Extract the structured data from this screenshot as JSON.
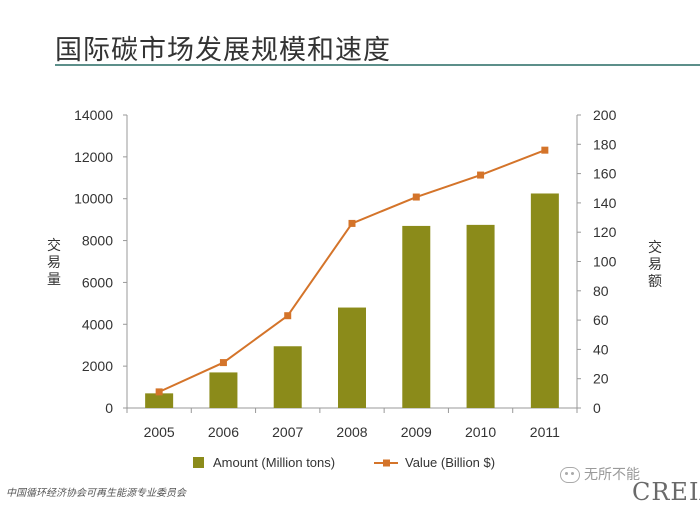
{
  "slide": {
    "title": "国际碳市场发展规模和速度",
    "footer": "中国循环经济协会可再生能源专业委员会",
    "watermark": "无所不能",
    "logo": "CREIA"
  },
  "chart_data": {
    "type": "bar",
    "title": "",
    "xlabel": "",
    "categories": [
      "2005",
      "2006",
      "2007",
      "2008",
      "2009",
      "2010",
      "2011"
    ],
    "series": [
      {
        "name": "Amount (Million tons)",
        "type": "bar",
        "axis": "left",
        "color": "#8b8b1a",
        "values": [
          700,
          1700,
          2950,
          4800,
          8700,
          8750,
          10250
        ]
      },
      {
        "name": "Value (Billion $)",
        "type": "line",
        "axis": "right",
        "color": "#d4742a",
        "values": [
          11,
          31,
          63,
          126,
          144,
          159,
          176
        ]
      }
    ],
    "y_left": {
      "label": "交易量",
      "range": [
        0,
        14000
      ],
      "ticks": [
        "0",
        "2000",
        "4000",
        "6000",
        "8000",
        "10000",
        "12000",
        "14000"
      ]
    },
    "y_right": {
      "label": "交易额",
      "range": [
        0,
        200
      ],
      "ticks": [
        "0",
        "20",
        "40",
        "60",
        "80",
        "100",
        "120",
        "140",
        "160",
        "180",
        "200"
      ]
    },
    "legend_position": "bottom",
    "grid": false
  }
}
